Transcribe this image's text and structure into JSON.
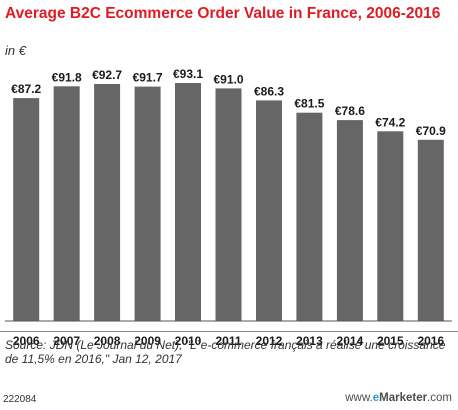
{
  "chart_data": {
    "type": "bar",
    "title": "Average B2C Ecommerce Order Value in France, 2006-2016",
    "subtitle": "in €",
    "categories": [
      "2006",
      "2007",
      "2008",
      "2009",
      "2010",
      "2011",
      "2012",
      "2013",
      "2014",
      "2015",
      "2016"
    ],
    "values": [
      87.2,
      91.8,
      92.7,
      91.7,
      93.1,
      91.0,
      86.3,
      81.5,
      78.6,
      74.2,
      70.9
    ],
    "value_labels": [
      "€87.2",
      "€91.8",
      "€92.7",
      "€91.7",
      "€93.1",
      "€91.0",
      "€86.3",
      "€81.5",
      "€78.6",
      "€74.2",
      "€70.9"
    ],
    "xlabel": "",
    "ylabel": "",
    "ylim": [
      0,
      93.1
    ],
    "grid": false,
    "bar_color": "#666666"
  },
  "footer": {
    "source": "Source: JDN (Le Journal du Net), \"L`e-commerce français a réalisé une croissance de 11,5% en 2016,\" Jan 12, 2017",
    "chart_id": "222084",
    "brand_prefix": "www.",
    "brand_e": "e",
    "brand_name": "Marketer",
    "brand_suffix": ".com"
  },
  "colors": {
    "title": "#e11b22",
    "bars": "#666666",
    "brand_e": "#2e9ad0"
  }
}
